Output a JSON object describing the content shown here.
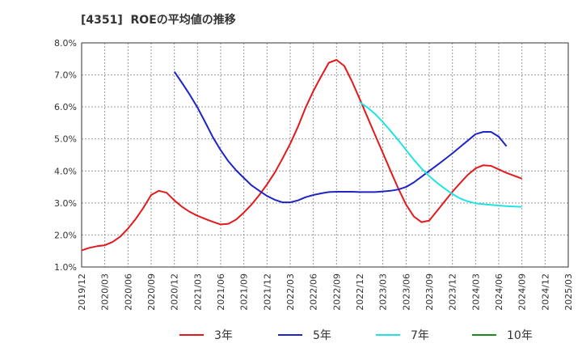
{
  "title": "[4351]  ROEの平均値の推移",
  "chart_data": {
    "type": "line",
    "title": "[4351]  ROEの平均値の推移",
    "xlabel": "",
    "ylabel": "",
    "x_ticks": [
      "2019/12",
      "2020/03",
      "2020/06",
      "2020/09",
      "2020/12",
      "2021/03",
      "2021/06",
      "2021/09",
      "2021/12",
      "2022/03",
      "2022/06",
      "2022/09",
      "2022/12",
      "2023/03",
      "2023/06",
      "2023/09",
      "2023/12",
      "2024/03",
      "2024/06",
      "2024/09",
      "2024/12",
      "2025/03"
    ],
    "y_ticks": [
      "1.0%",
      "2.0%",
      "3.0%",
      "4.0%",
      "5.0%",
      "6.0%",
      "7.0%",
      "8.0%"
    ],
    "ylim": [
      1.0,
      8.0
    ],
    "grid": true,
    "legend_position": "bottom",
    "series": [
      {
        "name": "3年",
        "color": "#e31a1c",
        "points": [
          [
            "2019/12",
            1.52
          ],
          [
            "2020/01",
            1.6
          ],
          [
            "2020/02",
            1.65
          ],
          [
            "2020/03",
            1.68
          ],
          [
            "2020/04",
            1.78
          ],
          [
            "2020/05",
            1.95
          ],
          [
            "2020/06",
            2.2
          ],
          [
            "2020/07",
            2.5
          ],
          [
            "2020/08",
            2.85
          ],
          [
            "2020/09",
            3.25
          ],
          [
            "2020/10",
            3.38
          ],
          [
            "2020/11",
            3.32
          ],
          [
            "2020/12",
            3.08
          ],
          [
            "2021/01",
            2.88
          ],
          [
            "2021/02",
            2.72
          ],
          [
            "2021/03",
            2.6
          ],
          [
            "2021/04",
            2.5
          ],
          [
            "2021/05",
            2.41
          ],
          [
            "2021/06",
            2.33
          ],
          [
            "2021/07",
            2.35
          ],
          [
            "2021/08",
            2.48
          ],
          [
            "2021/09",
            2.7
          ],
          [
            "2021/10",
            2.95
          ],
          [
            "2021/11",
            3.25
          ],
          [
            "2021/12",
            3.58
          ],
          [
            "2022/01",
            3.95
          ],
          [
            "2022/02",
            4.38
          ],
          [
            "2022/03",
            4.85
          ],
          [
            "2022/04",
            5.38
          ],
          [
            "2022/05",
            5.98
          ],
          [
            "2022/06",
            6.5
          ],
          [
            "2022/07",
            6.95
          ],
          [
            "2022/08",
            7.38
          ],
          [
            "2022/09",
            7.47
          ],
          [
            "2022/10",
            7.28
          ],
          [
            "2022/11",
            6.8
          ],
          [
            "2022/12",
            6.25
          ],
          [
            "2023/01",
            5.68
          ],
          [
            "2023/02",
            5.12
          ],
          [
            "2023/03",
            4.56
          ],
          [
            "2023/04",
            4.0
          ],
          [
            "2023/05",
            3.45
          ],
          [
            "2023/06",
            2.95
          ],
          [
            "2023/07",
            2.58
          ],
          [
            "2023/08",
            2.4
          ],
          [
            "2023/09",
            2.45
          ],
          [
            "2023/10",
            2.75
          ],
          [
            "2023/11",
            3.05
          ],
          [
            "2023/12",
            3.35
          ],
          [
            "2024/01",
            3.62
          ],
          [
            "2024/02",
            3.88
          ],
          [
            "2024/03",
            4.08
          ],
          [
            "2024/04",
            4.18
          ],
          [
            "2024/05",
            4.16
          ],
          [
            "2024/06",
            4.05
          ],
          [
            "2024/07",
            3.94
          ],
          [
            "2024/08",
            3.85
          ],
          [
            "2024/09",
            3.76
          ]
        ]
      },
      {
        "name": "5年",
        "color": "#1f24c4",
        "points": [
          [
            "2020/12",
            7.1
          ],
          [
            "2021/01",
            6.75
          ],
          [
            "2021/02",
            6.38
          ],
          [
            "2021/03",
            5.98
          ],
          [
            "2021/04",
            5.52
          ],
          [
            "2021/05",
            5.05
          ],
          [
            "2021/06",
            4.65
          ],
          [
            "2021/07",
            4.3
          ],
          [
            "2021/08",
            4.02
          ],
          [
            "2021/09",
            3.78
          ],
          [
            "2021/10",
            3.55
          ],
          [
            "2021/11",
            3.38
          ],
          [
            "2021/12",
            3.22
          ],
          [
            "2022/01",
            3.1
          ],
          [
            "2022/02",
            3.02
          ],
          [
            "2022/03",
            3.02
          ],
          [
            "2022/04",
            3.08
          ],
          [
            "2022/05",
            3.18
          ],
          [
            "2022/06",
            3.25
          ],
          [
            "2022/07",
            3.3
          ],
          [
            "2022/08",
            3.34
          ],
          [
            "2022/09",
            3.35
          ],
          [
            "2022/10",
            3.35
          ],
          [
            "2022/11",
            3.35
          ],
          [
            "2022/12",
            3.34
          ],
          [
            "2023/01",
            3.34
          ],
          [
            "2023/02",
            3.34
          ],
          [
            "2023/03",
            3.36
          ],
          [
            "2023/04",
            3.38
          ],
          [
            "2023/05",
            3.42
          ],
          [
            "2023/06",
            3.5
          ],
          [
            "2023/07",
            3.64
          ],
          [
            "2023/08",
            3.82
          ],
          [
            "2023/09",
            4.0
          ],
          [
            "2023/10",
            4.18
          ],
          [
            "2023/11",
            4.36
          ],
          [
            "2023/12",
            4.55
          ],
          [
            "2024/01",
            4.75
          ],
          [
            "2024/02",
            4.95
          ],
          [
            "2024/03",
            5.15
          ],
          [
            "2024/04",
            5.22
          ],
          [
            "2024/05",
            5.22
          ],
          [
            "2024/06",
            5.07
          ],
          [
            "2024/07",
            4.77
          ]
        ]
      },
      {
        "name": "7年",
        "color": "#22e3e3",
        "points": [
          [
            "2022/12",
            6.15
          ],
          [
            "2023/01",
            5.98
          ],
          [
            "2023/02",
            5.78
          ],
          [
            "2023/03",
            5.52
          ],
          [
            "2023/04",
            5.25
          ],
          [
            "2023/05",
            4.96
          ],
          [
            "2023/06",
            4.66
          ],
          [
            "2023/07",
            4.35
          ],
          [
            "2023/08",
            4.08
          ],
          [
            "2023/09",
            3.84
          ],
          [
            "2023/10",
            3.63
          ],
          [
            "2023/11",
            3.45
          ],
          [
            "2023/12",
            3.28
          ],
          [
            "2024/01",
            3.14
          ],
          [
            "2024/02",
            3.05
          ],
          [
            "2024/03",
            2.99
          ],
          [
            "2024/04",
            2.96
          ],
          [
            "2024/05",
            2.94
          ],
          [
            "2024/06",
            2.92
          ],
          [
            "2024/07",
            2.9
          ],
          [
            "2024/08",
            2.89
          ],
          [
            "2024/09",
            2.88
          ]
        ]
      },
      {
        "name": "10年",
        "color": "#1a8a1a",
        "points": []
      }
    ]
  }
}
